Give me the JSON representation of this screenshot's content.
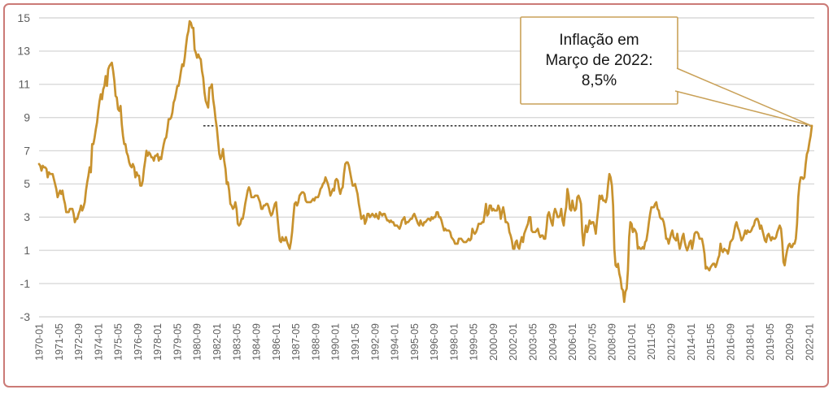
{
  "figure": {
    "background": "#ffffff",
    "frame_border_color": "#cb7a76"
  },
  "chart_data": {
    "type": "line",
    "title": "",
    "xlabel": "",
    "ylabel": "",
    "legend": "none",
    "grid": "horizontal",
    "ylim": [
      -3,
      15
    ],
    "yticks": [
      15,
      13,
      11,
      9,
      7,
      5,
      3,
      1,
      -1,
      -3
    ],
    "x_start": "1970-01",
    "x_end": "2022-03",
    "frequency": "monthly",
    "x_tick_interval_months": 16,
    "x_tick_labels": [
      "1970-01",
      "1971-05",
      "1972-09",
      "1974-01",
      "1975-05",
      "1976-09",
      "1978-01",
      "1979-05",
      "1980-09",
      "1982-01",
      "1983-05",
      "1984-09",
      "1986-01",
      "1987-05",
      "1988-09",
      "1990-01",
      "1991-05",
      "1992-09",
      "1994-01",
      "1995-05",
      "1996-09",
      "1998-01",
      "1999-05",
      "2000-09",
      "2002-01",
      "2003-05",
      "2004-09",
      "2006-01",
      "2007-05",
      "2008-09",
      "2010-01",
      "2011-05",
      "2012-09",
      "2014-01",
      "2015-05",
      "2016-09",
      "2018-01",
      "2019-05",
      "2020-09",
      "2022-01"
    ],
    "colors": {
      "line": "#c8922e",
      "grid": "#d9d9d9",
      "axis_text": "#5f5f5f",
      "reference_line": "#000000",
      "callout_border": "#c9a158",
      "callout_fill": "#ffffff"
    },
    "reference_line": {
      "value": 8.5,
      "style": "dotted"
    },
    "annotation": {
      "lines": [
        "Inflação em",
        "Março de 2022:",
        "8,5%"
      ],
      "points_to_value": 8.5,
      "points_to_x": "2022-03"
    },
    "series": [
      {
        "name": "inflacao-12-meses",
        "values": [
          6.2,
          6.1,
          5.8,
          6.1,
          6.0,
          6.0,
          5.9,
          5.4,
          5.7,
          5.6,
          5.6,
          5.6,
          5.3,
          5.0,
          4.7,
          4.2,
          4.4,
          4.6,
          4.4,
          4.6,
          4.1,
          3.8,
          3.3,
          3.3,
          3.3,
          3.5,
          3.5,
          3.5,
          3.2,
          2.7,
          2.9,
          2.9,
          3.2,
          3.4,
          3.7,
          3.4,
          3.6,
          3.9,
          4.6,
          5.1,
          5.5,
          6.0,
          5.7,
          7.4,
          7.4,
          7.8,
          8.3,
          8.7,
          9.4,
          10.0,
          10.4,
          10.1,
          10.7,
          10.9,
          11.5,
          10.9,
          11.9,
          12.1,
          12.2,
          12.3,
          11.8,
          11.2,
          10.3,
          10.2,
          9.5,
          9.4,
          9.7,
          8.6,
          7.9,
          7.4,
          7.4,
          6.9,
          6.7,
          6.3,
          6.1,
          6.0,
          6.2,
          6.0,
          5.4,
          5.7,
          5.5,
          5.5,
          4.9,
          4.9,
          5.2,
          5.9,
          6.4,
          7.0,
          6.7,
          6.9,
          6.8,
          6.6,
          6.6,
          6.4,
          6.7,
          6.7,
          6.8,
          6.4,
          6.6,
          6.5,
          7.0,
          7.4,
          7.7,
          7.8,
          8.3,
          8.9,
          8.9,
          9.0,
          9.3,
          9.9,
          10.1,
          10.5,
          10.9,
          10.9,
          11.3,
          11.8,
          12.2,
          12.1,
          12.6,
          13.3,
          13.9,
          14.2,
          14.8,
          14.7,
          14.4,
          14.4,
          13.1,
          12.9,
          12.6,
          12.8,
          12.6,
          12.5,
          11.8,
          11.4,
          10.5,
          10.0,
          9.8,
          9.6,
          10.8,
          10.8,
          11.0,
          10.1,
          9.6,
          8.9,
          8.4,
          7.6,
          6.8,
          6.5,
          6.7,
          7.1,
          6.4,
          5.9,
          5.0,
          5.1,
          4.6,
          3.8,
          3.7,
          3.5,
          3.6,
          3.9,
          3.5,
          2.6,
          2.5,
          2.6,
          2.9,
          2.9,
          3.3,
          3.8,
          4.2,
          4.6,
          4.8,
          4.6,
          4.2,
          4.2,
          4.2,
          4.3,
          4.3,
          4.3,
          4.1,
          3.9,
          3.5,
          3.5,
          3.7,
          3.7,
          3.8,
          3.8,
          3.6,
          3.3,
          3.1,
          3.2,
          3.5,
          3.8,
          3.9,
          3.1,
          2.3,
          1.6,
          1.5,
          1.8,
          1.6,
          1.6,
          1.8,
          1.5,
          1.3,
          1.1,
          1.5,
          2.1,
          3.0,
          3.8,
          3.9,
          3.7,
          3.9,
          4.3,
          4.4,
          4.5,
          4.5,
          4.4,
          4.0,
          3.9,
          3.9,
          3.9,
          3.9,
          4.0,
          4.1,
          4.0,
          4.2,
          4.2,
          4.2,
          4.4,
          4.7,
          4.8,
          5.0,
          5.1,
          5.4,
          5.2,
          5.0,
          4.7,
          4.3,
          4.5,
          4.7,
          4.6,
          5.2,
          5.3,
          5.2,
          4.7,
          4.4,
          4.7,
          4.8,
          5.6,
          6.2,
          6.3,
          6.3,
          6.1,
          5.7,
          5.3,
          4.9,
          4.9,
          5.0,
          4.7,
          4.4,
          3.8,
          3.4,
          2.9,
          3.0,
          3.1,
          2.6,
          2.8,
          3.2,
          3.2,
          3.0,
          3.1,
          3.2,
          3.1,
          3.0,
          3.2,
          3.0,
          2.9,
          3.3,
          3.2,
          3.1,
          3.2,
          3.2,
          3.0,
          2.8,
          2.8,
          2.7,
          2.8,
          2.7,
          2.7,
          2.5,
          2.5,
          2.5,
          2.4,
          2.3,
          2.5,
          2.8,
          2.9,
          3.0,
          2.6,
          2.7,
          2.7,
          2.8,
          2.9,
          2.9,
          3.1,
          3.2,
          3.0,
          2.8,
          2.6,
          2.5,
          2.8,
          2.6,
          2.5,
          2.7,
          2.7,
          2.8,
          2.9,
          2.9,
          2.8,
          3.0,
          2.9,
          3.0,
          3.0,
          3.3,
          3.3,
          3.0,
          3.0,
          2.8,
          2.5,
          2.2,
          2.3,
          2.2,
          2.2,
          2.2,
          2.1,
          1.8,
          1.7,
          1.6,
          1.4,
          1.4,
          1.4,
          1.7,
          1.7,
          1.7,
          1.6,
          1.5,
          1.5,
          1.5,
          1.6,
          1.7,
          1.6,
          1.7,
          2.3,
          2.1,
          2.0,
          2.1,
          2.3,
          2.6,
          2.6,
          2.6,
          2.7,
          2.7,
          3.2,
          3.8,
          3.1,
          3.2,
          3.7,
          3.7,
          3.4,
          3.5,
          3.4,
          3.4,
          3.4,
          3.7,
          3.5,
          2.9,
          3.3,
          3.6,
          3.2,
          2.7,
          2.7,
          2.6,
          2.1,
          1.9,
          1.6,
          1.1,
          1.1,
          1.5,
          1.6,
          1.2,
          1.1,
          1.5,
          1.8,
          1.5,
          2.0,
          2.2,
          2.4,
          2.6,
          3.0,
          3.0,
          2.2,
          2.1,
          2.1,
          2.1,
          2.2,
          2.3,
          2.0,
          1.8,
          1.9,
          1.9,
          1.7,
          1.7,
          2.3,
          3.1,
          3.3,
          3.0,
          2.7,
          2.5,
          3.2,
          3.5,
          3.3,
          3.0,
          3.0,
          3.1,
          3.5,
          2.8,
          2.5,
          3.2,
          3.6,
          4.7,
          4.3,
          3.5,
          3.4,
          4.0,
          3.6,
          3.4,
          3.5,
          4.2,
          4.3,
          4.1,
          3.8,
          2.1,
          1.3,
          2.0,
          2.5,
          2.1,
          2.4,
          2.8,
          2.6,
          2.7,
          2.7,
          2.4,
          2.0,
          2.8,
          3.5,
          4.3,
          4.1,
          4.3,
          4.0,
          4.0,
          3.9,
          4.2,
          5.0,
          5.6,
          5.4,
          4.9,
          3.7,
          1.1,
          0.1,
          0.0,
          0.2,
          -0.4,
          -0.7,
          -1.3,
          -1.4,
          -2.1,
          -1.5,
          -1.3,
          -0.2,
          1.8,
          2.7,
          2.6,
          2.1,
          2.3,
          2.2,
          2.0,
          1.1,
          1.2,
          1.1,
          1.1,
          1.2,
          1.1,
          1.5,
          1.6,
          2.1,
          2.7,
          3.2,
          3.6,
          3.6,
          3.6,
          3.8,
          3.9,
          3.5,
          3.4,
          3.0,
          2.9,
          2.9,
          2.7,
          2.3,
          1.7,
          1.7,
          1.4,
          1.7,
          2.0,
          2.2,
          1.8,
          1.7,
          1.6,
          2.0,
          1.5,
          1.1,
          1.4,
          1.8,
          2.0,
          1.5,
          1.2,
          1.0,
          1.2,
          1.5,
          1.6,
          1.1,
          1.5,
          2.0,
          2.1,
          2.1,
          2.0,
          1.7,
          1.7,
          1.7,
          1.3,
          0.8,
          -0.1,
          0.0,
          -0.1,
          -0.2,
          0.0,
          0.1,
          0.2,
          0.2,
          0.0,
          0.2,
          0.5,
          0.7,
          1.4,
          1.0,
          0.9,
          1.1,
          1.0,
          1.0,
          0.8,
          1.1,
          1.5,
          1.6,
          1.7,
          2.1,
          2.5,
          2.7,
          2.4,
          2.2,
          1.9,
          1.6,
          1.7,
          1.9,
          2.2,
          2.0,
          2.2,
          2.1,
          2.1,
          2.2,
          2.4,
          2.5,
          2.8,
          2.9,
          2.9,
          2.7,
          2.3,
          2.5,
          2.2,
          1.9,
          1.6,
          1.5,
          1.9,
          2.0,
          1.8,
          1.6,
          1.8,
          1.7,
          1.7,
          1.8,
          2.1,
          2.3,
          2.5,
          2.3,
          1.5,
          0.3,
          0.1,
          0.6,
          1.0,
          1.3,
          1.4,
          1.2,
          1.2,
          1.4,
          1.4,
          1.7,
          2.6,
          4.2,
          5.0,
          5.4,
          5.4,
          5.3,
          5.4,
          6.2,
          6.8,
          7.0,
          7.5,
          7.9,
          8.5
        ]
      }
    ]
  }
}
